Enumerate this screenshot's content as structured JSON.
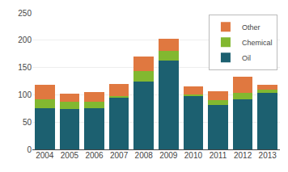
{
  "chart_data": {
    "type": "bar",
    "stacked": true,
    "categories": [
      "2004",
      "2005",
      "2006",
      "2007",
      "2008",
      "2009",
      "2010",
      "2011",
      "2012",
      "2013"
    ],
    "series": [
      {
        "name": "Oil",
        "color": "#1c6070",
        "values": [
          75,
          74,
          75,
          94,
          124,
          163,
          97,
          81,
          91,
          104
        ]
      },
      {
        "name": "Chemical",
        "color": "#82b830",
        "values": [
          17,
          14,
          13,
          4,
          20,
          18,
          4,
          9,
          12,
          5
        ]
      },
      {
        "name": "Other",
        "color": "#e07840",
        "values": [
          26,
          14,
          17,
          22,
          26,
          22,
          14,
          17,
          30,
          10
        ]
      }
    ],
    "ylim": [
      0,
      250
    ],
    "yticks": [
      0,
      50,
      100,
      150,
      200,
      250
    ],
    "grid": true,
    "legend": "upper right"
  }
}
